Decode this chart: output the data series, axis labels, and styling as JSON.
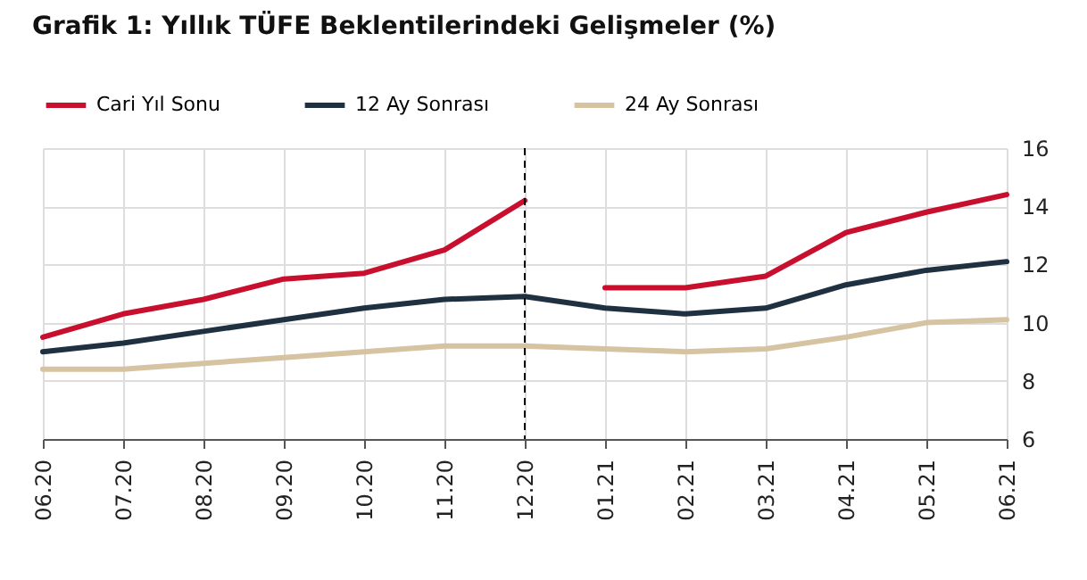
{
  "chart_data": {
    "type": "line",
    "title": "Grafik 1: Yıllık TÜFE Beklentilerindeki Gelişmeler (%)",
    "categories": [
      "06.20",
      "07.20",
      "08.20",
      "09.20",
      "10.20",
      "11.20",
      "12.20",
      "01.21",
      "02.21",
      "03.21",
      "04.21",
      "05.21",
      "06.21"
    ],
    "series": [
      {
        "name": "Cari Yıl Sonu",
        "color": "#c8102e",
        "values": [
          9.5,
          10.3,
          10.8,
          11.5,
          11.7,
          12.5,
          14.2,
          null,
          null,
          null,
          null,
          null,
          null
        ]
      },
      {
        "color": "#c8102e",
        "values": [
          null,
          null,
          null,
          null,
          null,
          null,
          null,
          11.2,
          11.2,
          11.6,
          13.1,
          13.8,
          14.4
        ]
      },
      {
        "name": "12 Ay Sonrası",
        "color": "#1f3040",
        "values": [
          9.0,
          9.3,
          9.7,
          10.1,
          10.5,
          10.8,
          10.9,
          10.5,
          10.3,
          10.5,
          11.3,
          11.8,
          12.1
        ]
      },
      {
        "name": "24 Ay Sonrası",
        "color": "#d5c3a2",
        "values": [
          8.4,
          8.4,
          8.6,
          8.8,
          9.0,
          9.2,
          9.2,
          9.1,
          9.0,
          9.1,
          9.5,
          10.0,
          10.1
        ]
      }
    ],
    "ylim": [
      6,
      16
    ],
    "yticks": [
      6,
      8,
      10,
      12,
      14,
      16
    ],
    "grid": true,
    "legend": "top",
    "ref_lines": [
      {
        "axis": "x",
        "value": "12.20",
        "line_style": "dashed",
        "color": "#000000"
      }
    ]
  }
}
